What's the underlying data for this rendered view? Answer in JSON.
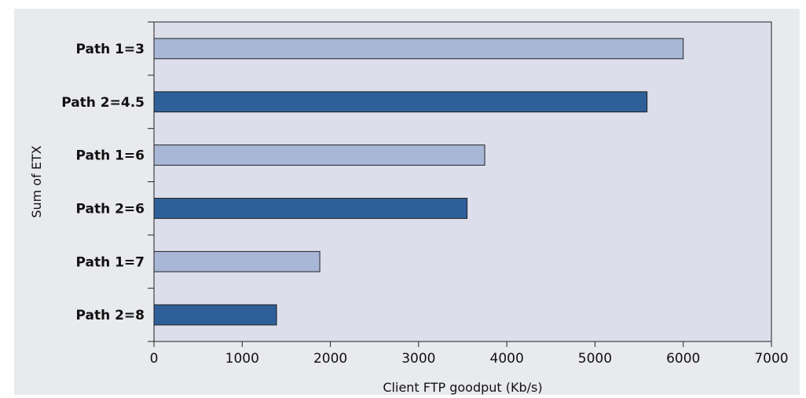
{
  "chart_data": {
    "type": "bar",
    "orientation": "horizontal",
    "title": "",
    "xlabel": "Client FTP goodput (Kb/s)",
    "ylabel": "Sum of ETX",
    "categories": [
      "Path 1=3",
      "Path 2=4.5",
      "Path 1=6",
      "Path 2=6",
      "Path 1=7",
      "Path 2=8"
    ],
    "values": [
      6000,
      5590,
      3750,
      3550,
      1880,
      1390
    ],
    "xlim": [
      0,
      7000
    ],
    "xticks": [
      "0",
      "1000",
      "2000",
      "3000",
      "4000",
      "5000",
      "6000",
      "7000"
    ],
    "grid": false,
    "legend": "none",
    "colors": {
      "path1": "#a9b7d7",
      "path2": "#2e5f98",
      "plot_background": "#dcdfeb",
      "figure_background": "#e9eaee",
      "bar_edge": "#222222"
    }
  }
}
